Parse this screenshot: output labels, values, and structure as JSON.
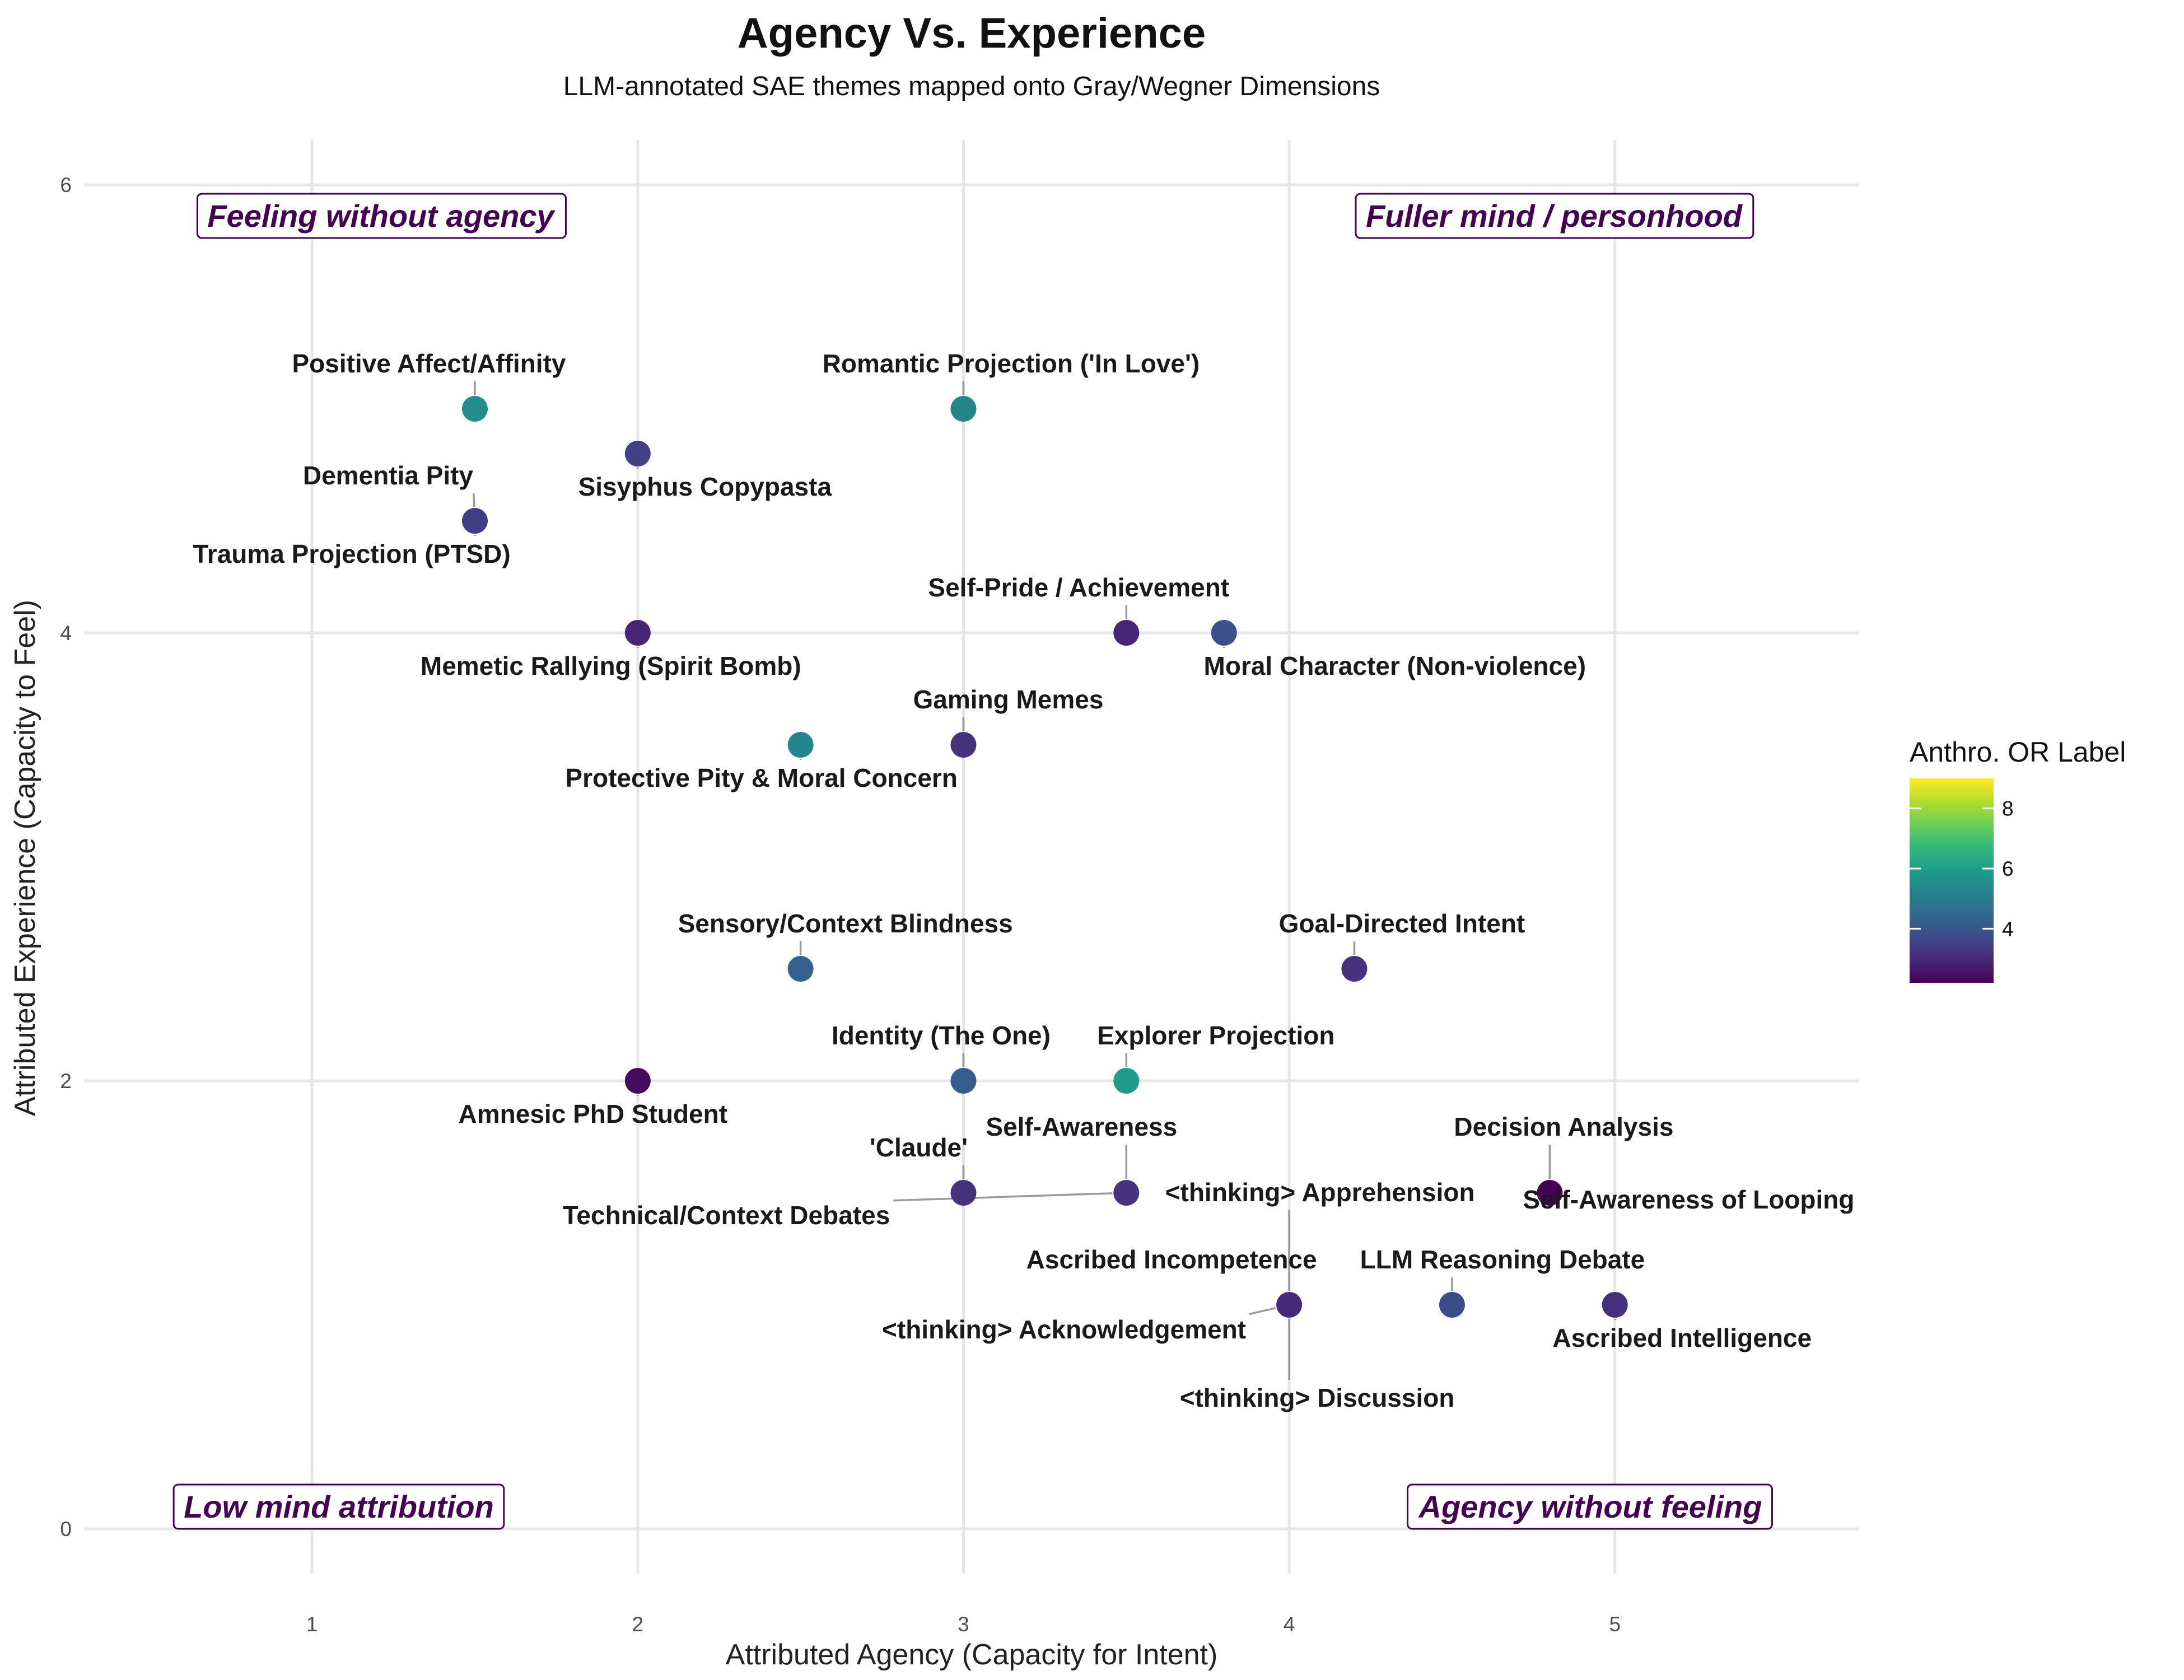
{
  "chart_data": {
    "type": "scatter",
    "title": "Agency Vs. Experience",
    "subtitle": "LLM-annotated SAE themes mapped onto Gray/Wegner Dimensions",
    "xlabel": "Attributed Agency (Capacity for Intent)",
    "ylabel": "Attributed Experience (Capacity to Feel)",
    "xlim": [
      0.3,
      5.75
    ],
    "ylim": [
      -0.2,
      6.2
    ],
    "xticks": [
      "1",
      "2",
      "3",
      "4",
      "5"
    ],
    "yticks": [
      "0",
      "2",
      "4",
      "6"
    ],
    "grid": true,
    "color_scale": {
      "name": "viridis",
      "title": "Anthro. OR Label",
      "min": 2.2,
      "max": 9.0,
      "ticks": [
        "4",
        "6",
        "8"
      ],
      "stops": [
        "#440154",
        "#482878",
        "#3e4a89",
        "#31688e",
        "#26828e",
        "#1f9e89",
        "#35b779",
        "#6ece58",
        "#b5de2b",
        "#fde725"
      ]
    },
    "quadrants": [
      {
        "label": "Feeling without agency",
        "position": "top-left"
      },
      {
        "label": "Fuller mind / personhood",
        "position": "top-right"
      },
      {
        "label": "Low mind attribution",
        "position": "bottom-left"
      },
      {
        "label": "Agency without feeling",
        "position": "bottom-right"
      }
    ],
    "points": [
      {
        "label": "Positive Affect/Affinity",
        "x": 1.5,
        "y": 5.0,
        "or": 5.5
      },
      {
        "label": "Romantic Projection ('In Love')",
        "x": 3.0,
        "y": 5.0,
        "or": 5.3
      },
      {
        "label": "Sisyphus Copypasta",
        "x": 2.0,
        "y": 4.8,
        "or": 3.5
      },
      {
        "label": "Dementia Pity",
        "x": 1.5,
        "y": 4.5,
        "or": 3.4
      },
      {
        "label": "Trauma Projection (PTSD)",
        "x": 1.5,
        "y": 4.5,
        "or": 3.4
      },
      {
        "label": "Memetic Rallying (Spirit Bomb)",
        "x": 2.0,
        "y": 4.0,
        "or": 2.9
      },
      {
        "label": "Self-Pride / Achievement",
        "x": 3.5,
        "y": 4.0,
        "or": 2.9
      },
      {
        "label": "Moral Character (Non-violence)",
        "x": 3.8,
        "y": 4.0,
        "or": 3.9
      },
      {
        "label": "Gaming Memes",
        "x": 3.0,
        "y": 3.5,
        "or": 3.2
      },
      {
        "label": "Protective Pity & Moral Concern",
        "x": 2.5,
        "y": 3.5,
        "or": 5.3
      },
      {
        "label": "Sensory/Context Blindness",
        "x": 2.5,
        "y": 2.5,
        "or": 4.3
      },
      {
        "label": "Goal-Directed Intent",
        "x": 4.2,
        "y": 2.5,
        "or": 3.2
      },
      {
        "label": "Amnesic PhD Student",
        "x": 2.0,
        "y": 2.0,
        "or": 2.4
      },
      {
        "label": "Identity (The One)",
        "x": 3.0,
        "y": 2.0,
        "or": 4.2
      },
      {
        "label": "Explorer Projection",
        "x": 3.5,
        "y": 2.0,
        "or": 5.9
      },
      {
        "label": "'Claude'",
        "x": 3.0,
        "y": 1.5,
        "or": 3.2
      },
      {
        "label": "Self-Awareness",
        "x": 3.5,
        "y": 1.5,
        "or": 3.2
      },
      {
        "label": "Technical/Context Debates",
        "x": 3.5,
        "y": 1.5,
        "or": 3.2
      },
      {
        "label": "Decision Analysis",
        "x": 4.8,
        "y": 1.5,
        "or": 2.2
      },
      {
        "label": "Self-Awareness of Looping",
        "x": 4.8,
        "y": 1.5,
        "or": 2.2
      },
      {
        "label": "<thinking> Apprehension",
        "x": 4.0,
        "y": 1.0,
        "or": 3.0
      },
      {
        "label": "Ascribed Incompetence",
        "x": 4.0,
        "y": 1.0,
        "or": 3.0
      },
      {
        "label": "<thinking> Acknowledgement",
        "x": 4.0,
        "y": 1.0,
        "or": 3.0
      },
      {
        "label": "<thinking> Discussion",
        "x": 4.0,
        "y": 1.0,
        "or": 3.0
      },
      {
        "label": "LLM Reasoning Debate",
        "x": 4.5,
        "y": 1.0,
        "or": 3.8
      },
      {
        "label": "Ascribed Intelligence",
        "x": 5.0,
        "y": 1.0,
        "or": 3.1
      }
    ]
  }
}
